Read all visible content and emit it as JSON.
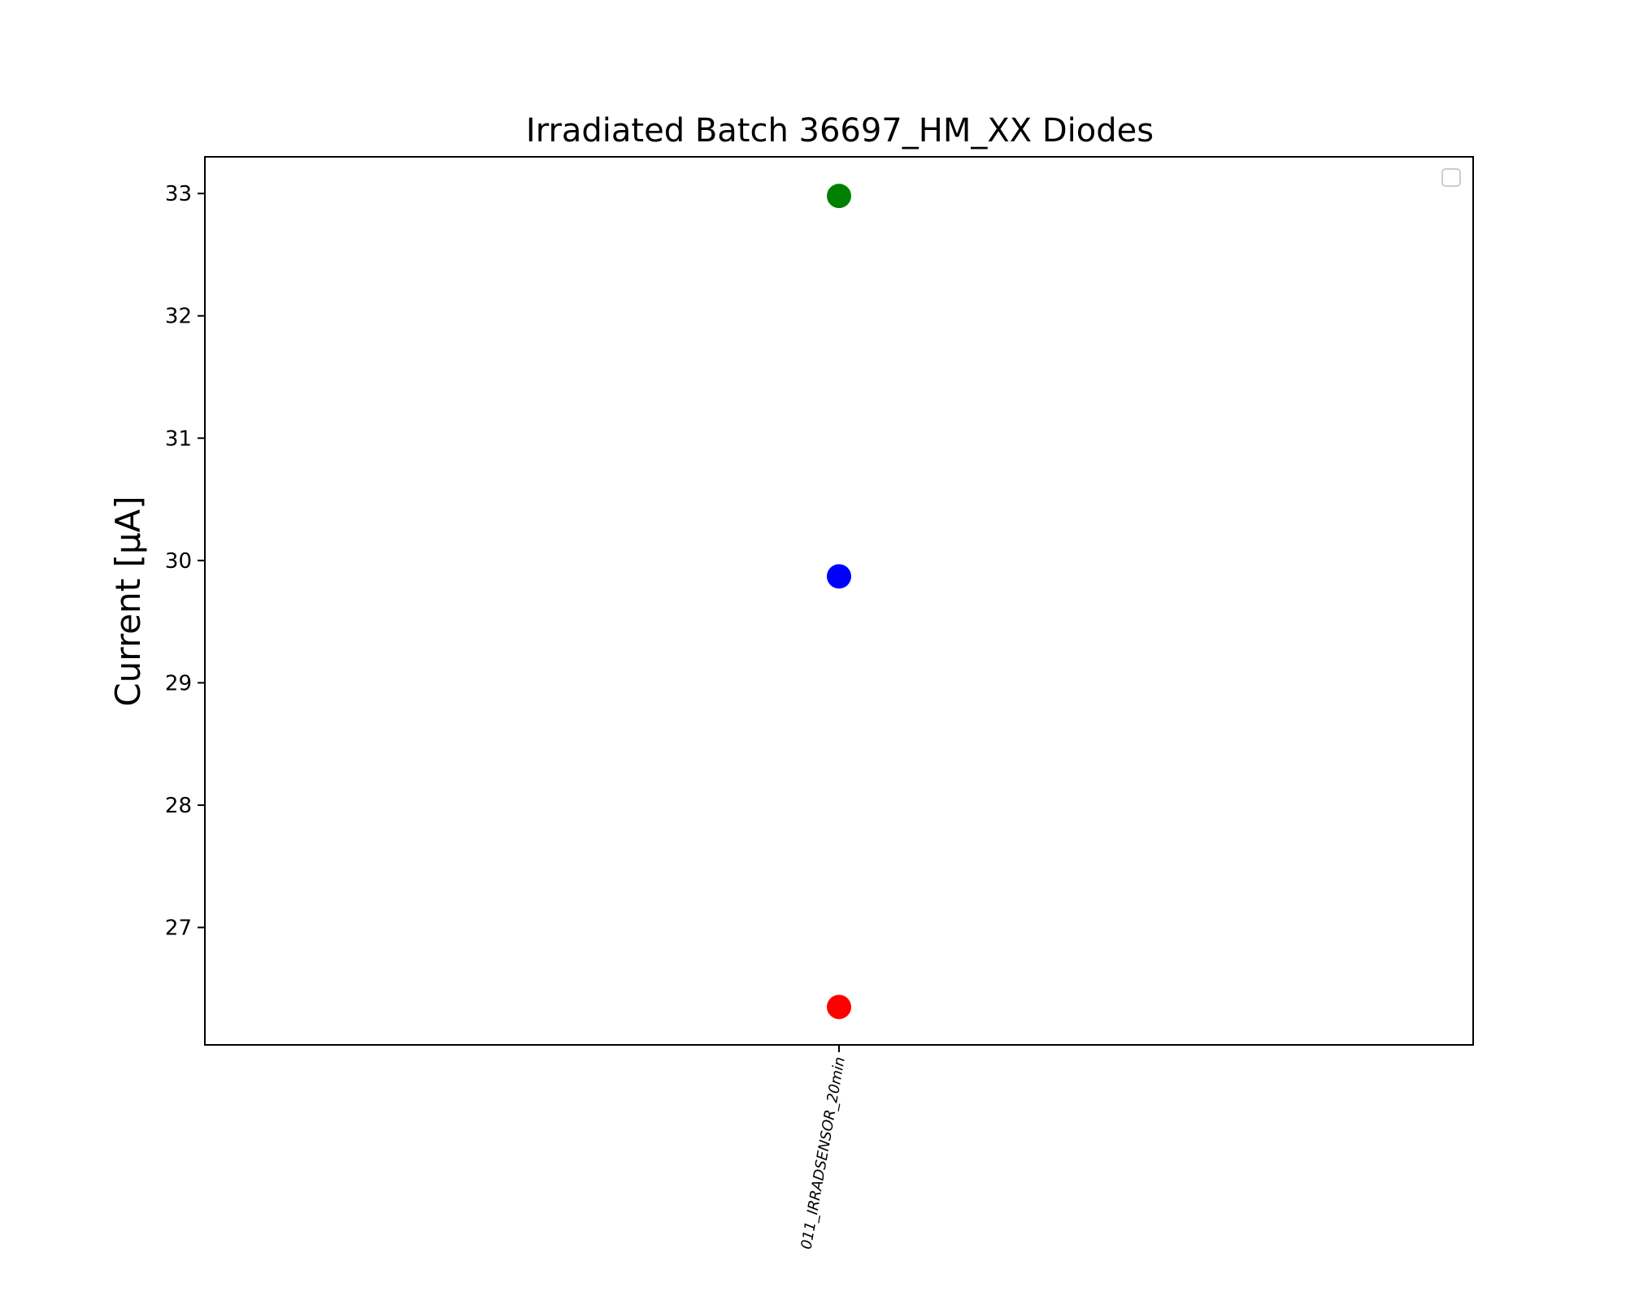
{
  "chart_data": {
    "type": "scatter",
    "title": "Irradiated Batch 36697_HM_XX Diodes",
    "ylabel": "Current [μA]",
    "categories": [
      "011_IRRADSENSOR_20min"
    ],
    "ylim": [
      26.04,
      33.3
    ],
    "yticks": [
      27,
      28,
      29,
      30,
      31,
      32,
      33
    ],
    "grid": false,
    "legend": "top-right (empty)",
    "series": [
      {
        "color": "#008000",
        "values": [
          32.98
        ]
      },
      {
        "color": "#0000ff",
        "values": [
          29.87
        ]
      },
      {
        "color": "#ff0000",
        "values": [
          26.35
        ]
      }
    ]
  }
}
